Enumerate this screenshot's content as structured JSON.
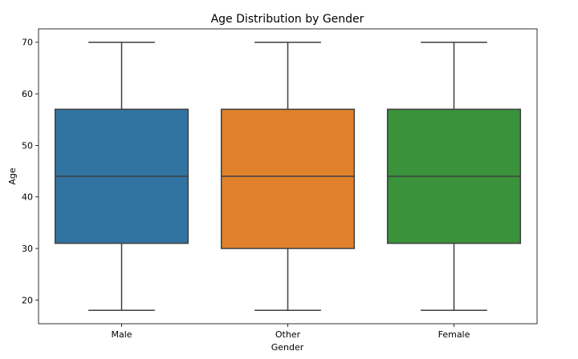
{
  "chart_data": {
    "type": "box",
    "title": "Age Distribution by Gender",
    "xlabel": "Gender",
    "ylabel": "Age",
    "ylim": [
      15.4,
      72.6
    ],
    "yticks": [
      20,
      30,
      40,
      50,
      60,
      70
    ],
    "grid": false,
    "categories": [
      "Male",
      "Other",
      "Female"
    ],
    "boxes": [
      {
        "category": "Male",
        "min": 18,
        "q1": 31,
        "median": 44,
        "q3": 57,
        "max": 70,
        "color": "#3274a1"
      },
      {
        "category": "Other",
        "min": 18,
        "q1": 30,
        "median": 44,
        "q3": 57,
        "max": 70,
        "color": "#e1812c"
      },
      {
        "category": "Female",
        "min": 18,
        "q1": 31,
        "median": 44,
        "q3": 57,
        "max": 70,
        "color": "#3a923a"
      }
    ],
    "line_color": "#3f3f3f"
  }
}
